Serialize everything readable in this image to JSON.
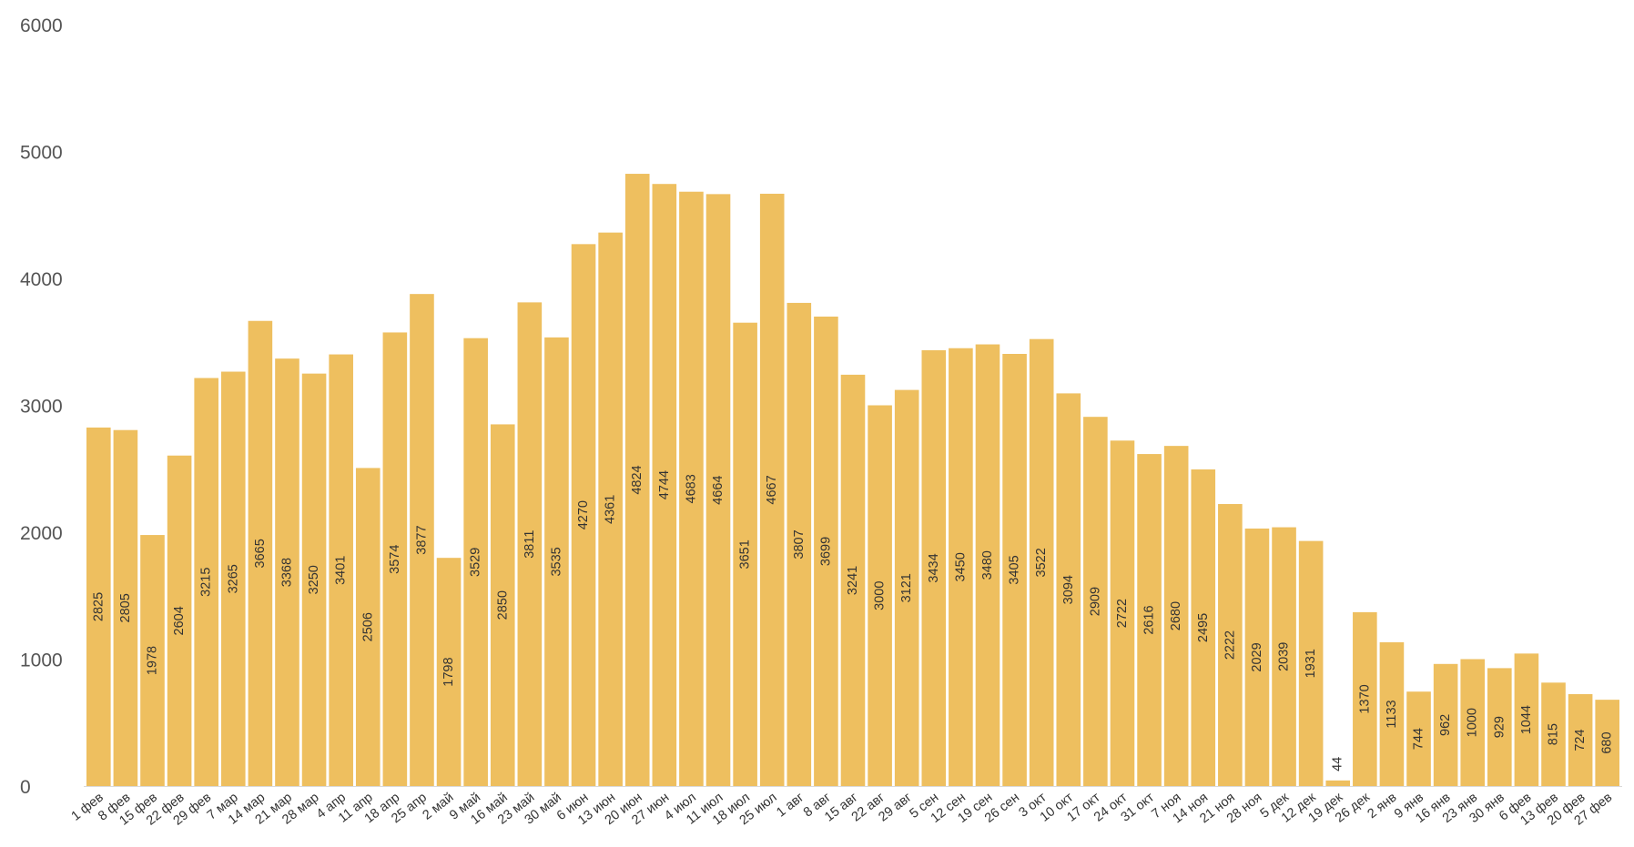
{
  "chart_data": {
    "type": "bar",
    "title": "",
    "xlabel": "",
    "ylabel": "",
    "ylim": [
      0,
      6000
    ],
    "yticks": [
      0,
      1000,
      2000,
      3000,
      4000,
      5000,
      6000
    ],
    "grid": false,
    "legend": "none",
    "bar_color": "#EEBF5F",
    "categories": [
      "1 фев",
      "8 фев",
      "15 фев",
      "22 фев",
      "29 фев",
      "7 мар",
      "14 мар",
      "21 мар",
      "28 мар",
      "4 апр",
      "11 апр",
      "18 апр",
      "25 апр",
      "2 май",
      "9 май",
      "16 май",
      "23 май",
      "30 май",
      "6 июн",
      "13 июн",
      "20 июн",
      "27 июн",
      "4 июл",
      "11 июл",
      "18 июл",
      "25 июл",
      "1 авг",
      "8 авг",
      "15 авг",
      "22 авг",
      "29 авг",
      "5 сен",
      "12 сен",
      "19 сен",
      "26 сен",
      "3 окт",
      "10 окт",
      "17 окт",
      "24 окт",
      "31 окт",
      "7 ноя",
      "14 ноя",
      "21 ноя",
      "28 ноя",
      "5 дек",
      "12 дек",
      "19 дек",
      "26 дек",
      "2 янв",
      "9 янв",
      "16 янв",
      "23 янв",
      "30 янв",
      "6 фев",
      "13 фев",
      "20 фев",
      "27 фев"
    ],
    "values": [
      2825,
      2805,
      1978,
      2604,
      3215,
      3265,
      3665,
      3368,
      3250,
      3401,
      2506,
      3574,
      3877,
      1798,
      3529,
      2850,
      3811,
      3535,
      4270,
      4361,
      4824,
      4744,
      4683,
      4664,
      3651,
      4667,
      3807,
      3699,
      3241,
      3000,
      3121,
      3434,
      3450,
      3480,
      3405,
      3522,
      3094,
      2909,
      2722,
      2616,
      2680,
      2495,
      2222,
      2029,
      2039,
      1931,
      44,
      1370,
      1133,
      744,
      962,
      1000,
      929,
      1044,
      815,
      724,
      680
    ]
  }
}
